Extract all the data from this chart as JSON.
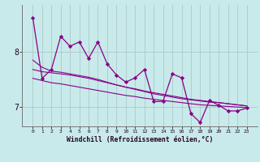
{
  "xlabel": "Windchill (Refroidissement éolien,°C)",
  "bg_color": "#c8eaea",
  "grid_color": "#b0c8c8",
  "line_color": "#880088",
  "x_values": [
    0,
    1,
    2,
    3,
    4,
    5,
    6,
    7,
    8,
    9,
    10,
    11,
    12,
    13,
    14,
    15,
    16,
    17,
    18,
    19,
    20,
    21,
    22,
    23
  ],
  "y_main": [
    8.62,
    7.52,
    7.68,
    8.28,
    8.1,
    8.18,
    7.88,
    8.18,
    7.78,
    7.58,
    7.45,
    7.53,
    7.68,
    7.1,
    7.1,
    7.6,
    7.53,
    6.88,
    6.72,
    7.12,
    7.03,
    6.93,
    6.93,
    6.98
  ],
  "y_smooth1": [
    7.85,
    7.72,
    7.65,
    7.63,
    7.6,
    7.57,
    7.54,
    7.5,
    7.45,
    7.4,
    7.36,
    7.32,
    7.28,
    7.24,
    7.21,
    7.18,
    7.15,
    7.13,
    7.11,
    7.09,
    7.08,
    7.06,
    7.04,
    7.02
  ],
  "y_smooth2": [
    7.68,
    7.64,
    7.62,
    7.6,
    7.58,
    7.55,
    7.52,
    7.48,
    7.44,
    7.4,
    7.36,
    7.33,
    7.29,
    7.26,
    7.23,
    7.2,
    7.17,
    7.14,
    7.12,
    7.1,
    7.08,
    7.06,
    7.04,
    7.02
  ],
  "y_trend": [
    7.52,
    7.48,
    7.44,
    7.42,
    7.39,
    7.36,
    7.33,
    7.3,
    7.27,
    7.24,
    7.21,
    7.19,
    7.16,
    7.14,
    7.12,
    7.1,
    7.08,
    7.06,
    7.04,
    7.03,
    7.02,
    7.01,
    7.0,
    6.99
  ],
  "ylim": [
    6.65,
    8.85
  ],
  "yticks": [
    7,
    8
  ],
  "xticks": [
    0,
    1,
    2,
    3,
    4,
    5,
    6,
    7,
    8,
    9,
    10,
    11,
    12,
    13,
    14,
    15,
    16,
    17,
    18,
    19,
    20,
    21,
    22,
    23
  ]
}
